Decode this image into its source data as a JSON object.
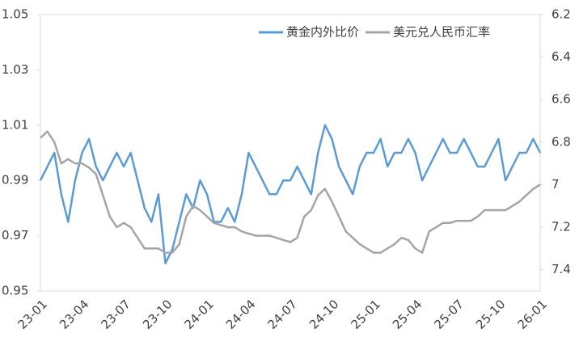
{
  "chart_data": {
    "type": "line",
    "categories": [
      "23-01",
      null,
      null,
      null,
      null,
      null,
      "23-04",
      null,
      null,
      null,
      null,
      null,
      "23-07",
      null,
      null,
      null,
      null,
      null,
      "23-10",
      null,
      null,
      null,
      null,
      null,
      "24-01",
      null,
      null,
      null,
      null,
      null,
      "24-04",
      null,
      null,
      null,
      null,
      null,
      "24-07",
      null,
      null,
      null,
      null,
      null,
      "24-10",
      null,
      null,
      null,
      null,
      null,
      "25-01",
      null,
      null,
      null,
      null,
      null,
      "25-04",
      null,
      null,
      null,
      null,
      null,
      "25-07",
      null,
      null,
      null,
      null,
      null,
      "25-10",
      null,
      null,
      null,
      null,
      null,
      "26-01"
    ],
    "series": [
      {
        "name": "黄金内外比价",
        "color": "#5b9bd5",
        "values": [
          0.99,
          0.995,
          1.0,
          0.985,
          0.975,
          0.99,
          1.0,
          1.005,
          0.995,
          0.99,
          0.995,
          1.0,
          0.995,
          1.0,
          0.99,
          0.98,
          0.975,
          0.985,
          0.96,
          0.965,
          0.975,
          0.985,
          0.98,
          0.99,
          0.985,
          0.975,
          0.975,
          0.98,
          0.975,
          0.985,
          1.0,
          0.995,
          0.99,
          0.985,
          0.985,
          0.99,
          0.99,
          0.995,
          0.99,
          0.985,
          1.0,
          1.01,
          1.005,
          0.995,
          0.99,
          0.985,
          0.995,
          1.0,
          1.0,
          1.005,
          0.995,
          1.0,
          1.0,
          1.005,
          1.0,
          0.99,
          0.995,
          1.0,
          1.005,
          1.0,
          1.0,
          1.005,
          1.0,
          0.995,
          0.995,
          1.0,
          1.005,
          0.99,
          0.995,
          1.0,
          1.0,
          1.005,
          1.0
        ]
      },
      {
        "name": "美元兑人民币汇率",
        "color": "#a5a5a5",
        "axis": "y2",
        "values": [
          6.78,
          6.75,
          6.8,
          6.9,
          6.88,
          6.9,
          6.9,
          6.92,
          6.95,
          7.05,
          7.15,
          7.2,
          7.18,
          7.2,
          7.25,
          7.3,
          7.3,
          7.3,
          7.32,
          7.32,
          7.28,
          7.15,
          7.1,
          7.12,
          7.15,
          7.18,
          7.19,
          7.2,
          7.2,
          7.22,
          7.23,
          7.24,
          7.24,
          7.24,
          7.25,
          7.26,
          7.27,
          7.25,
          7.15,
          7.12,
          7.05,
          7.02,
          7.08,
          7.15,
          7.22,
          7.25,
          7.28,
          7.3,
          7.32,
          7.32,
          7.3,
          7.28,
          7.25,
          7.26,
          7.3,
          7.32,
          7.22,
          7.2,
          7.18,
          7.18,
          7.17,
          7.17,
          7.17,
          7.15,
          7.12,
          7.12,
          7.12,
          7.12,
          7.1,
          7.08,
          7.05,
          7.02,
          7.0
        ]
      }
    ],
    "ylim": [
      0.95,
      1.05
    ],
    "yticks": [
      0.95,
      0.97,
      0.99,
      1.01,
      1.03,
      1.05
    ],
    "y2lim": [
      6.2,
      7.5
    ],
    "y2ticks": [
      6.2,
      6.4,
      6.6,
      6.8,
      7,
      7.2,
      7.4
    ],
    "y2_inverted": true,
    "legend": "top-right"
  }
}
